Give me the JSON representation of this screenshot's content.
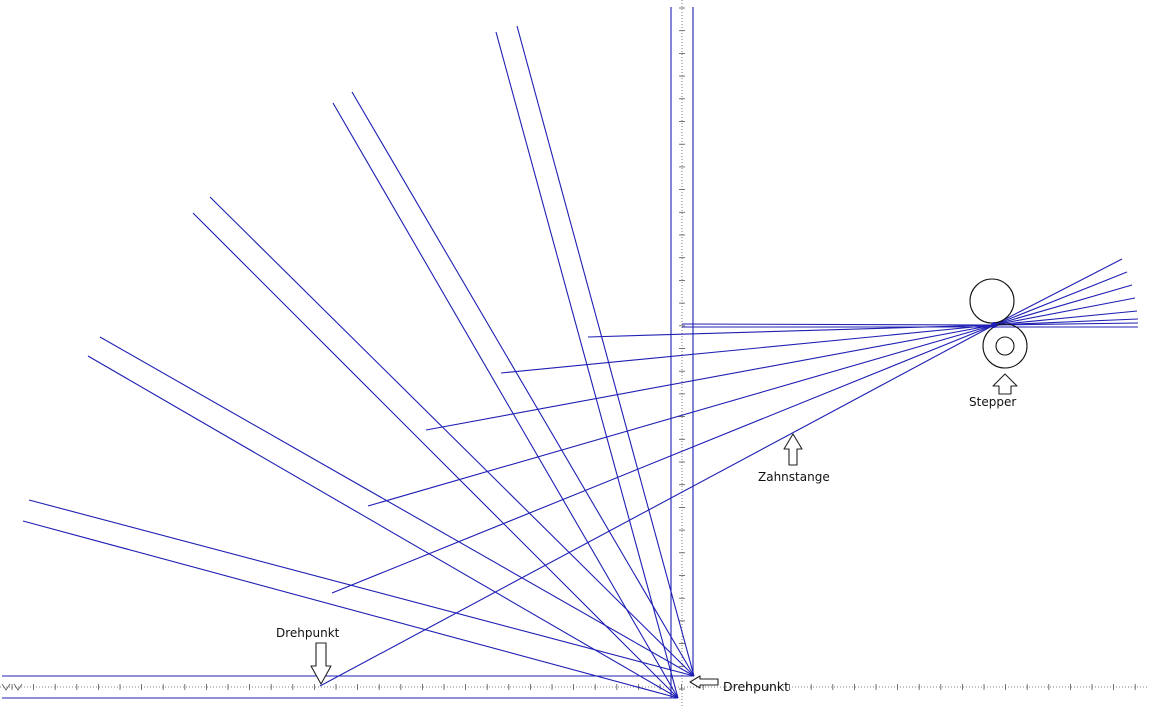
{
  "diagram": {
    "line_color": "#1f1fb4",
    "labels": {
      "pivot_left": "Drehpunkt",
      "pivot_corner": "Drehpunkt",
      "rack": "Zahnstange",
      "stepper": "Stepper"
    },
    "icons": {
      "arrow": "hollow-arrow-icon",
      "gear": "gear-circle-icon"
    }
  }
}
